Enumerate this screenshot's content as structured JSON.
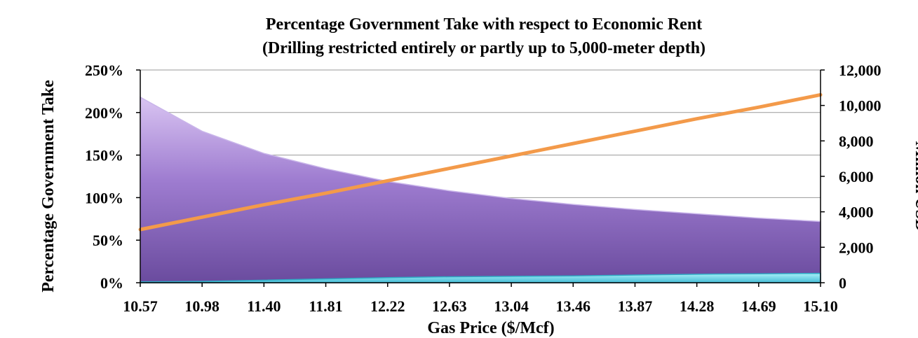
{
  "chart_data": {
    "type": "area",
    "title": "Percentage Government Take with respect to Economic Rent",
    "subtitle": "(Drilling restricted entirely or partly up to 5,000-meter depth)",
    "xlabel": "Gas Price ($/Mcf)",
    "ylabel": "Percentage Government Take",
    "y2label": "Million USD",
    "categories": [
      "10.57",
      "10.98",
      "11.40",
      "11.81",
      "12.22",
      "12.63",
      "13.04",
      "13.46",
      "13.87",
      "14.28",
      "14.69",
      "15.10"
    ],
    "yticks": [
      "0%",
      "50%",
      "100%",
      "150%",
      "200%",
      "250%"
    ],
    "y2ticks": [
      "0",
      "2,000",
      "4,000",
      "6,000",
      "8,000",
      "10,000",
      "12,000"
    ],
    "ylim": [
      0,
      250
    ],
    "y2lim": [
      0,
      12000
    ],
    "grid": true,
    "series": [
      {
        "axis": "left",
        "kind": "area",
        "color": "#8E6BC0",
        "values": [
          218,
          178,
          152,
          134,
          119,
          108,
          99,
          92,
          86,
          81,
          76,
          72
        ]
      },
      {
        "axis": "left",
        "kind": "area",
        "color": "#5FD3E6",
        "values": [
          1,
          1.5,
          3,
          4.5,
          6,
          7,
          7.5,
          8,
          9,
          10,
          10.5,
          11
        ]
      },
      {
        "axis": "right",
        "kind": "line",
        "color": "#F39A4A",
        "values": [
          3000,
          3700,
          4400,
          5050,
          5750,
          6450,
          7150,
          7850,
          8550,
          9250,
          9900,
          10600
        ]
      }
    ]
  }
}
